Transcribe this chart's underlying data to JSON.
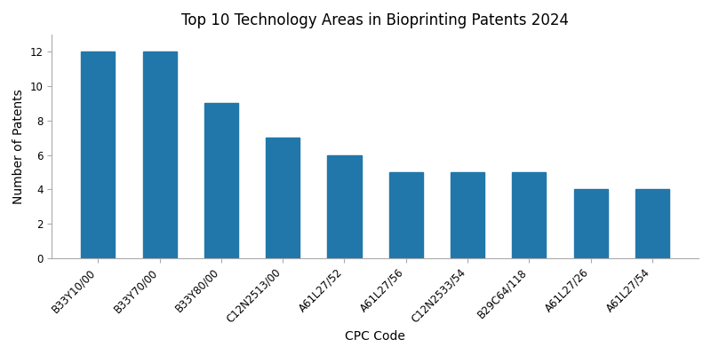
{
  "title": "Top 10 Technology Areas in Bioprinting Patents 2024",
  "xlabel": "CPC Code",
  "ylabel": "Number of Patents",
  "categories": [
    "B33Y10/00",
    "B33Y70/00",
    "B33Y80/00",
    "C12N2513/00",
    "A61L27/52",
    "A61L27/56",
    "C12N2533/54",
    "B29C64/118",
    "A61L27/26",
    "A61L27/54"
  ],
  "values": [
    12,
    12,
    9,
    7,
    6,
    5,
    5,
    5,
    4,
    4
  ],
  "bar_color": "#2277aa",
  "ylim": [
    0,
    13
  ],
  "yticks": [
    0,
    2,
    4,
    6,
    8,
    10,
    12
  ],
  "title_fontsize": 12,
  "label_fontsize": 10,
  "tick_fontsize": 8.5,
  "bar_width": 0.55,
  "figsize": [
    8.0,
    4.0
  ],
  "dpi": 100
}
